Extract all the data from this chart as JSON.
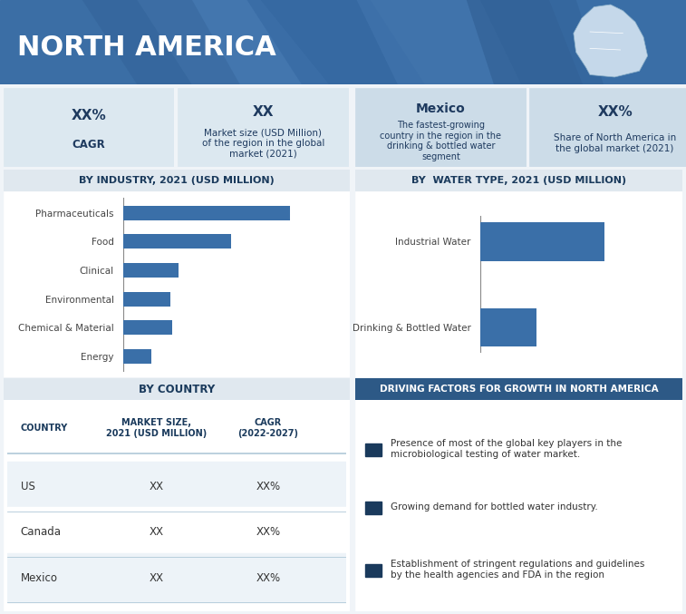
{
  "title": "NORTH AMERICA",
  "header_bg": "#3b6ea5",
  "header_bg_dark": "#2d5a8e",
  "info_box_bg": "#dce8f0",
  "info_box_bg2": "#ccdaea",
  "section_header_bg": "#e0e8ef",
  "driving_header_bg": "#2d5986",
  "bar_color": "#3a6fa8",
  "outer_bg": "#f0f4f8",
  "panel_bg": "#ffffff",
  "stat_boxes": [
    {
      "top": "XX%",
      "bottom": "CAGR"
    },
    {
      "top": "XX",
      "bottom": "Market size (USD Million)\nof the region in the global\nmarket (2021)"
    },
    {
      "top": "Mexico",
      "bottom": "The fastest-growing\ncountry in the region in the\ndrinking & bottled water\nsegment"
    },
    {
      "top": "XX%",
      "bottom": "Share of North America in\nthe global market (2021)"
    }
  ],
  "industry_title": "BY INDUSTRY, 2021 (USD MILLION)",
  "industry_labels": [
    "Pharmaceuticals",
    "Food",
    "Clinical",
    "Environmental",
    "Chemical & Material",
    "Energy"
  ],
  "industry_values": [
    85,
    55,
    28,
    24,
    25,
    14
  ],
  "water_title": "BY  WATER TYPE, 2021 (USD MILLION)",
  "water_labels": [
    "Industrial Water",
    "Drinking & Bottled Water"
  ],
  "water_values": [
    62,
    28
  ],
  "country_title": "BY COUNTRY",
  "country_headers": [
    "COUNTRY",
    "MARKET SIZE,\n2021 (USD MILLION)",
    "CAGR\n(2022-2027)"
  ],
  "country_rows": [
    [
      "US",
      "XX",
      "XX%"
    ],
    [
      "Canada",
      "XX",
      "XX%"
    ],
    [
      "Mexico",
      "XX",
      "XX%"
    ]
  ],
  "driving_title": "DRIVING FACTORS FOR GROWTH IN NORTH AMERICA",
  "driving_points": [
    "Presence of most of the global key players in the\nmicrobiological testing of water market.",
    "Growing demand for bottled water industry.",
    "Establishment of stringent regulations and guidelines\nby the health agencies and FDA in the region"
  ],
  "text_dark": "#1a3a5c",
  "text_navy": "#1e3a5f",
  "border_color": "#b0c8d8",
  "separator_color": "#b0c8d8"
}
